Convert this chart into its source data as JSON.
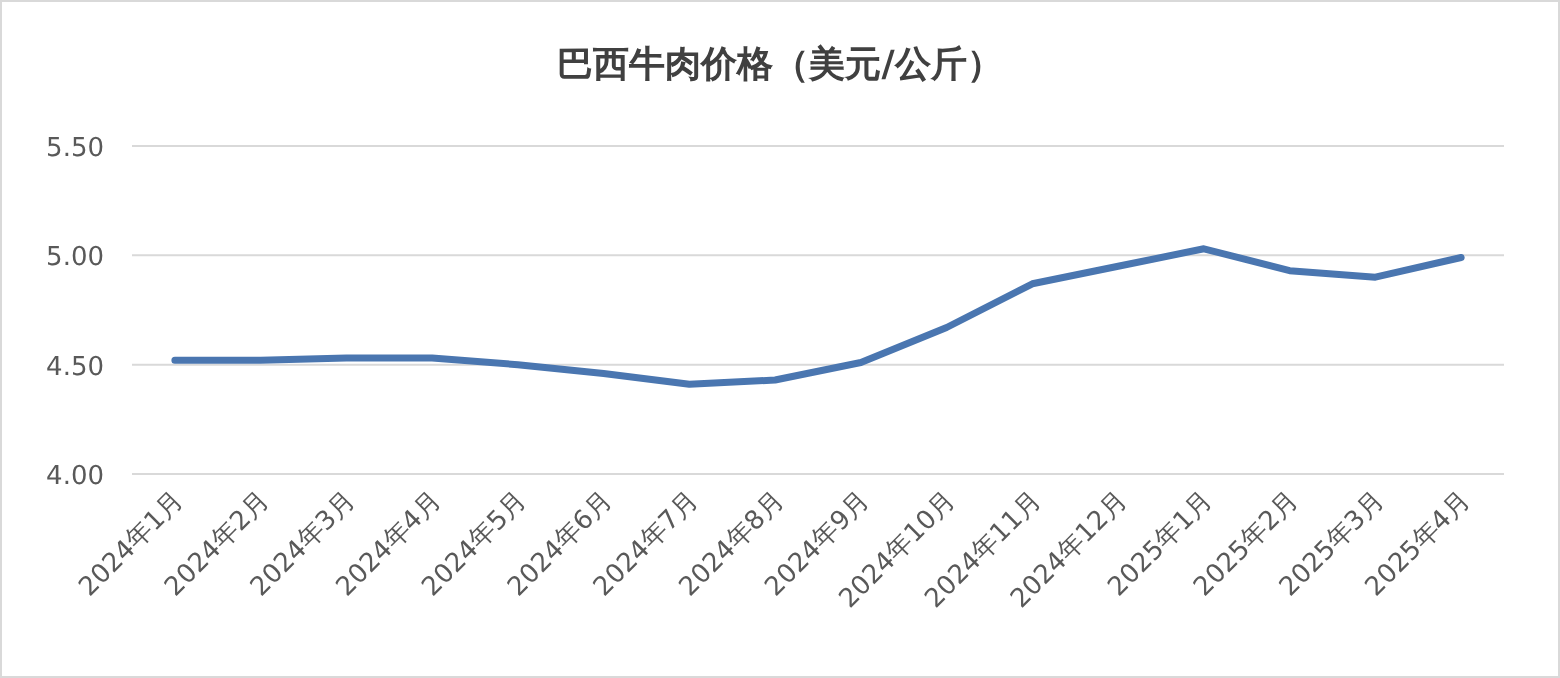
{
  "chart_data": {
    "type": "line",
    "title": "巴西牛肉价格（美元/公斤）",
    "categories": [
      "2024年1月",
      "2024年2月",
      "2024年3月",
      "2024年4月",
      "2024年5月",
      "2024年6月",
      "2024年7月",
      "2024年8月",
      "2024年9月",
      "2024年10月",
      "2024年11月",
      "2024年12月",
      "2025年1月",
      "2025年2月",
      "2025年3月",
      "2025年4月"
    ],
    "series": [
      {
        "color": "#4a76b0",
        "values": [
          4.52,
          4.52,
          4.53,
          4.53,
          4.5,
          4.46,
          4.41,
          4.43,
          4.51,
          4.67,
          4.87,
          4.95,
          5.03,
          4.93,
          4.9,
          4.99
        ]
      }
    ],
    "ylim": [
      4.0,
      5.5
    ],
    "yticks": [
      {
        "value": 4.0,
        "label": "4.00"
      },
      {
        "value": 4.5,
        "label": "4.50"
      },
      {
        "value": 5.0,
        "label": "5.00"
      },
      {
        "value": 5.5,
        "label": "5.50"
      }
    ],
    "grid": "y",
    "marker": "none",
    "line_style": "solid"
  }
}
